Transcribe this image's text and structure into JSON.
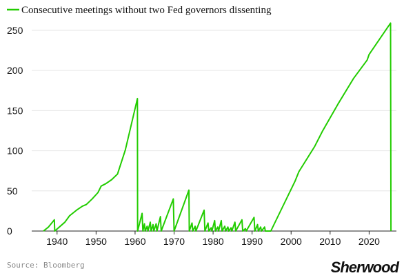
{
  "chart_data": {
    "type": "line",
    "series": [
      {
        "name": "Consecutive meetings without two Fed governors dissenting",
        "color": "#22cc00",
        "points": [
          [
            1936.5,
            0
          ],
          [
            1937.8,
            5
          ],
          [
            1939.3,
            14
          ],
          [
            1939.4,
            0
          ],
          [
            1942,
            11
          ],
          [
            1943.2,
            19
          ],
          [
            1945,
            26
          ],
          [
            1946.5,
            31
          ],
          [
            1947.5,
            33
          ],
          [
            1949,
            40
          ],
          [
            1950.5,
            48
          ],
          [
            1951.3,
            56
          ],
          [
            1952.5,
            59
          ],
          [
            1954,
            64
          ],
          [
            1955.5,
            71
          ],
          [
            1957.5,
            101
          ],
          [
            1960.6,
            165
          ],
          [
            1960.65,
            0
          ],
          [
            1961.8,
            22
          ],
          [
            1962.0,
            0
          ],
          [
            1962.4,
            9
          ],
          [
            1962.6,
            0
          ],
          [
            1963.1,
            6
          ],
          [
            1963.3,
            0
          ],
          [
            1963.9,
            11
          ],
          [
            1964.1,
            0
          ],
          [
            1964.6,
            8
          ],
          [
            1964.8,
            0
          ],
          [
            1965.4,
            9
          ],
          [
            1965.6,
            0
          ],
          [
            1966.5,
            18
          ],
          [
            1966.7,
            0
          ],
          [
            1969.8,
            40
          ],
          [
            1970.0,
            0
          ],
          [
            1973.8,
            51
          ],
          [
            1973.9,
            0
          ],
          [
            1974.6,
            10
          ],
          [
            1974.8,
            0
          ],
          [
            1975.4,
            6
          ],
          [
            1975.6,
            0
          ],
          [
            1977.7,
            26
          ],
          [
            1977.9,
            0
          ],
          [
            1978.7,
            10
          ],
          [
            1978.9,
            0
          ],
          [
            1979.5,
            4
          ],
          [
            1979.7,
            0
          ],
          [
            1980.4,
            13
          ],
          [
            1980.6,
            0
          ],
          [
            1981.2,
            5
          ],
          [
            1981.4,
            0
          ],
          [
            1982.1,
            13
          ],
          [
            1982.3,
            0
          ],
          [
            1983.0,
            6
          ],
          [
            1983.2,
            0
          ],
          [
            1983.8,
            5
          ],
          [
            1984.0,
            0
          ],
          [
            1984.6,
            4
          ],
          [
            1984.8,
            0
          ],
          [
            1985.6,
            11
          ],
          [
            1985.8,
            0
          ],
          [
            1987.4,
            14
          ],
          [
            1987.6,
            0
          ],
          [
            1988.3,
            3
          ],
          [
            1988.5,
            0
          ],
          [
            1990.5,
            17
          ],
          [
            1990.7,
            0
          ],
          [
            1991.4,
            8
          ],
          [
            1991.6,
            0
          ],
          [
            1992.2,
            5
          ],
          [
            1992.4,
            0
          ],
          [
            1993.2,
            5
          ],
          [
            1993.4,
            0
          ],
          [
            1994.8,
            0
          ],
          [
            1998,
            32
          ],
          [
            2001,
            62
          ],
          [
            2002,
            74
          ],
          [
            2006,
            105
          ],
          [
            2008,
            124
          ],
          [
            2012,
            158
          ],
          [
            2016,
            190
          ],
          [
            2019.5,
            213
          ],
          [
            2020,
            220
          ],
          [
            2025.5,
            259
          ],
          [
            2025.6,
            0
          ]
        ]
      }
    ],
    "x_ticks": [
      1940,
      1950,
      1960,
      1970,
      1980,
      1990,
      2000,
      2010,
      2020
    ],
    "y_ticks": [
      0,
      50,
      100,
      150,
      200,
      250
    ],
    "xlim": [
      1933.5,
      2027
    ],
    "ylim": [
      0,
      262
    ],
    "grid": "horizontal",
    "legend": "top-left",
    "xlabel": "",
    "ylabel": ""
  },
  "source": "Source: Bloomberg",
  "logo": "Sherwood"
}
